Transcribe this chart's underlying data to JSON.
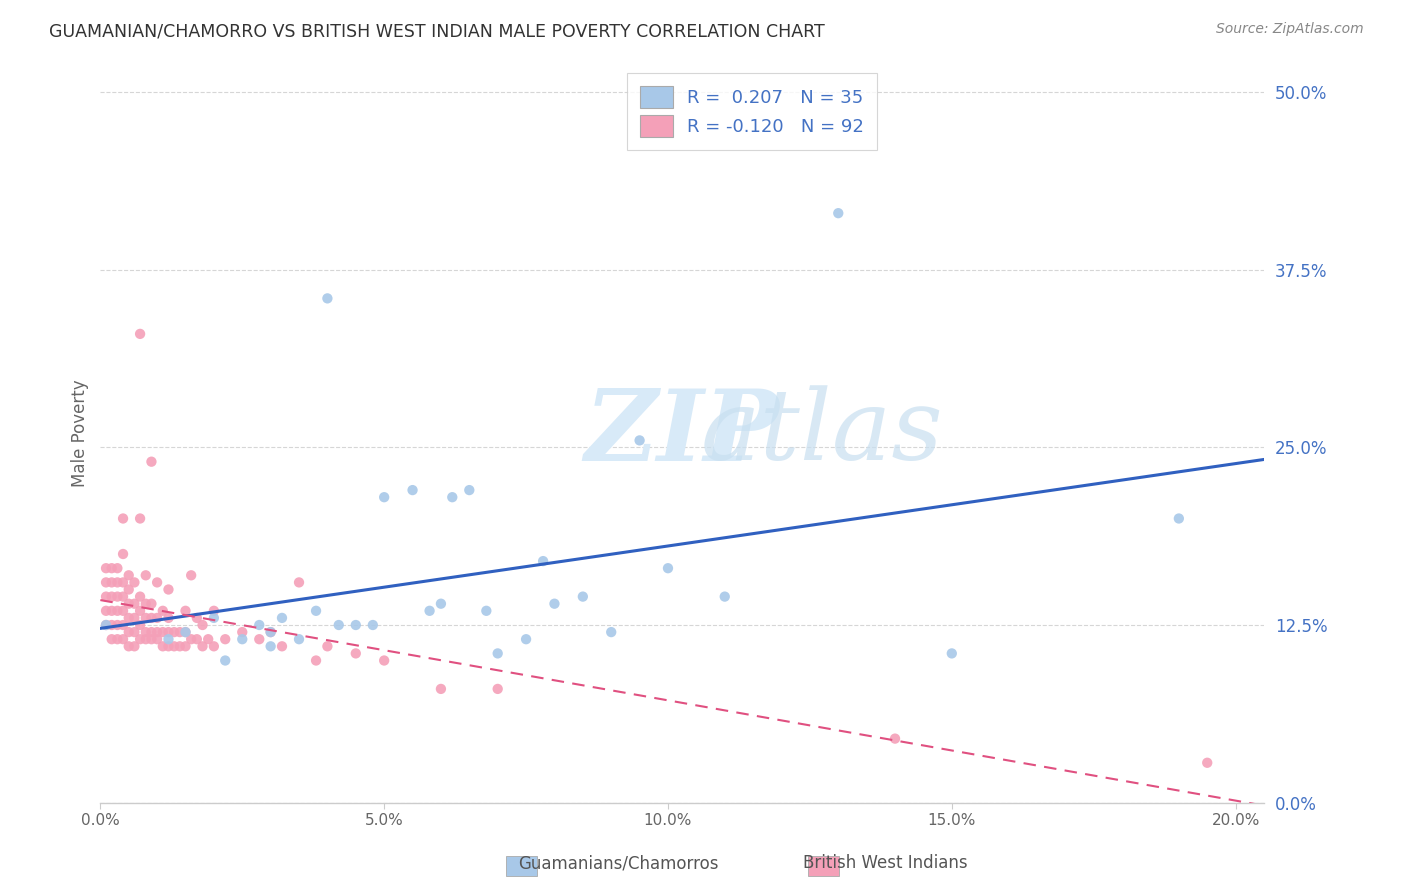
{
  "title": "GUAMANIAN/CHAMORRO VS BRITISH WEST INDIAN MALE POVERTY CORRELATION CHART",
  "source": "Source: ZipAtlas.com",
  "ylabel": "Male Poverty",
  "legend_blue_label": "Guamanians/Chamorros",
  "legend_pink_label": "British West Indians",
  "R_blue": 0.207,
  "N_blue": 35,
  "R_pink": -0.12,
  "N_pink": 92,
  "blue_color": "#a8c8e8",
  "pink_color": "#f4a0b8",
  "blue_line_color": "#3060c0",
  "pink_line_color": "#e05080",
  "blue_scatter_x": [
    0.001,
    0.012,
    0.015,
    0.02,
    0.022,
    0.025,
    0.028,
    0.03,
    0.03,
    0.032,
    0.035,
    0.038,
    0.04,
    0.042,
    0.045,
    0.048,
    0.05,
    0.055,
    0.058,
    0.06,
    0.062,
    0.065,
    0.068,
    0.07,
    0.075,
    0.078,
    0.08,
    0.085,
    0.09,
    0.095,
    0.1,
    0.11,
    0.13,
    0.15,
    0.19
  ],
  "blue_scatter_y": [
    0.125,
    0.115,
    0.12,
    0.13,
    0.1,
    0.115,
    0.125,
    0.11,
    0.12,
    0.13,
    0.115,
    0.135,
    0.355,
    0.125,
    0.125,
    0.125,
    0.215,
    0.22,
    0.135,
    0.14,
    0.215,
    0.22,
    0.135,
    0.105,
    0.115,
    0.17,
    0.14,
    0.145,
    0.12,
    0.255,
    0.165,
    0.145,
    0.415,
    0.105,
    0.2
  ],
  "pink_scatter_x": [
    0.001,
    0.001,
    0.001,
    0.001,
    0.001,
    0.002,
    0.002,
    0.002,
    0.002,
    0.002,
    0.002,
    0.003,
    0.003,
    0.003,
    0.003,
    0.003,
    0.003,
    0.004,
    0.004,
    0.004,
    0.004,
    0.004,
    0.004,
    0.004,
    0.005,
    0.005,
    0.005,
    0.005,
    0.005,
    0.005,
    0.006,
    0.006,
    0.006,
    0.006,
    0.006,
    0.007,
    0.007,
    0.007,
    0.007,
    0.007,
    0.007,
    0.008,
    0.008,
    0.008,
    0.008,
    0.008,
    0.009,
    0.009,
    0.009,
    0.009,
    0.009,
    0.01,
    0.01,
    0.01,
    0.01,
    0.011,
    0.011,
    0.011,
    0.012,
    0.012,
    0.012,
    0.012,
    0.013,
    0.013,
    0.014,
    0.014,
    0.015,
    0.015,
    0.015,
    0.016,
    0.016,
    0.017,
    0.017,
    0.018,
    0.018,
    0.019,
    0.02,
    0.02,
    0.022,
    0.025,
    0.028,
    0.03,
    0.032,
    0.035,
    0.038,
    0.04,
    0.045,
    0.05,
    0.06,
    0.07,
    0.14,
    0.195
  ],
  "pink_scatter_y": [
    0.125,
    0.135,
    0.145,
    0.155,
    0.165,
    0.115,
    0.125,
    0.135,
    0.145,
    0.155,
    0.165,
    0.115,
    0.125,
    0.135,
    0.145,
    0.155,
    0.165,
    0.115,
    0.125,
    0.135,
    0.145,
    0.155,
    0.175,
    0.2,
    0.11,
    0.12,
    0.13,
    0.14,
    0.15,
    0.16,
    0.11,
    0.12,
    0.13,
    0.14,
    0.155,
    0.115,
    0.125,
    0.135,
    0.145,
    0.2,
    0.33,
    0.115,
    0.12,
    0.13,
    0.14,
    0.16,
    0.115,
    0.12,
    0.13,
    0.14,
    0.24,
    0.115,
    0.12,
    0.13,
    0.155,
    0.11,
    0.12,
    0.135,
    0.11,
    0.12,
    0.13,
    0.15,
    0.11,
    0.12,
    0.11,
    0.12,
    0.11,
    0.12,
    0.135,
    0.115,
    0.16,
    0.115,
    0.13,
    0.11,
    0.125,
    0.115,
    0.11,
    0.135,
    0.115,
    0.12,
    0.115,
    0.12,
    0.11,
    0.155,
    0.1,
    0.11,
    0.105,
    0.1,
    0.08,
    0.08,
    0.045,
    0.028
  ]
}
